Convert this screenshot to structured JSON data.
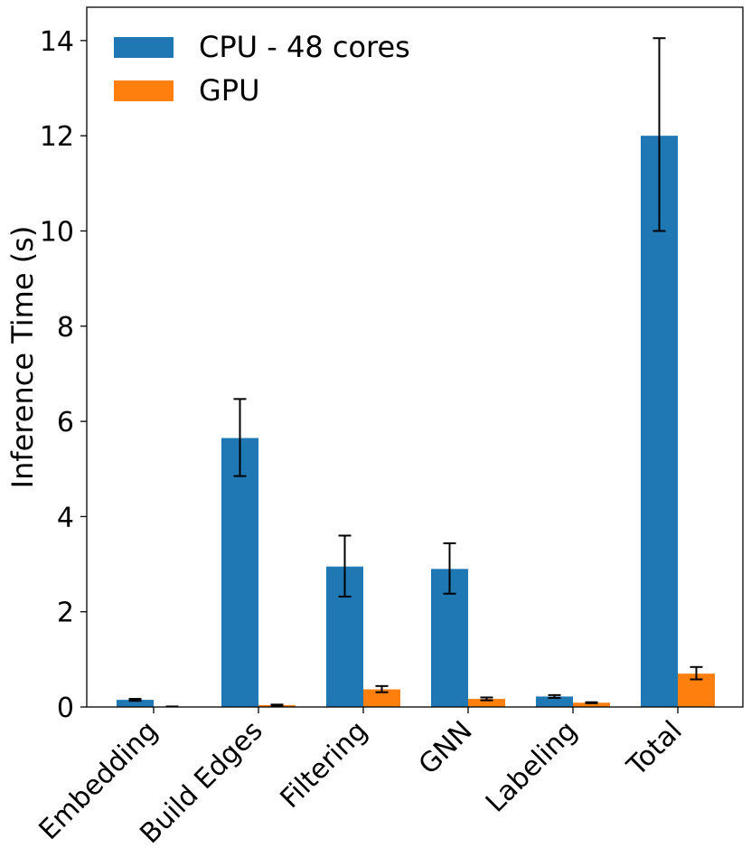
{
  "chart_data": {
    "type": "bar",
    "title": "",
    "xlabel": "",
    "ylabel": "Inference Time (s)",
    "ylim": [
      0,
      14.7
    ],
    "yticks": [
      0,
      2,
      4,
      6,
      8,
      10,
      12,
      14
    ],
    "categories": [
      "Embedding",
      "Build Edges",
      "Filtering",
      "GNN",
      "Labeling",
      "Total"
    ],
    "series": [
      {
        "name": "CPU - 48 cores",
        "color": "#1f77b4",
        "values": [
          0.15,
          5.65,
          2.95,
          2.9,
          0.22,
          12.0
        ],
        "err_low": [
          0.13,
          4.85,
          2.32,
          2.38,
          0.19,
          10.0
        ],
        "err_high": [
          0.17,
          6.47,
          3.6,
          3.44,
          0.25,
          14.05
        ]
      },
      {
        "name": "GPU",
        "color": "#ff7f0e",
        "values": [
          0.01,
          0.04,
          0.37,
          0.17,
          0.09,
          0.7
        ],
        "err_low": [
          0.01,
          0.03,
          0.31,
          0.14,
          0.08,
          0.58
        ],
        "err_high": [
          0.01,
          0.05,
          0.44,
          0.2,
          0.1,
          0.84
        ]
      }
    ],
    "legend_position": "top-left",
    "grid": false
  }
}
